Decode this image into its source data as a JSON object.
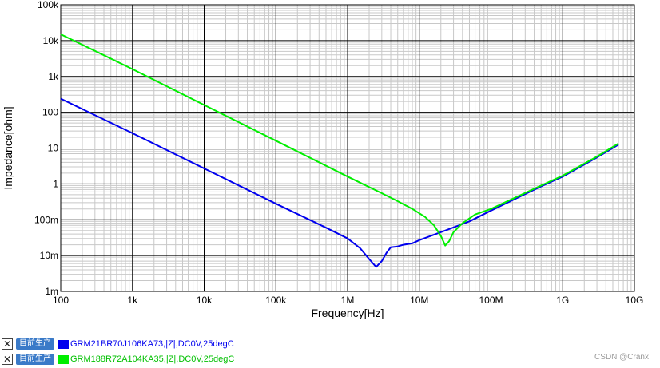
{
  "chart_data": {
    "type": "line",
    "xlabel": "Frequency[Hz]",
    "ylabel": "Impedance[ohm]",
    "x_scale": "log",
    "y_scale": "log",
    "xlim": [
      100,
      10000000000
    ],
    "ylim": [
      0.001,
      100000
    ],
    "grid": true,
    "legend_placement": "bottom-left",
    "x_ticks": [
      {
        "value": 100,
        "label": "100"
      },
      {
        "value": 1000,
        "label": "1k"
      },
      {
        "value": 10000,
        "label": "10k"
      },
      {
        "value": 100000,
        "label": "100k"
      },
      {
        "value": 1000000,
        "label": "1M"
      },
      {
        "value": 10000000,
        "label": "10M"
      },
      {
        "value": 100000000,
        "label": "100M"
      },
      {
        "value": 1000000000,
        "label": "1G"
      },
      {
        "value": 10000000000,
        "label": "10G"
      }
    ],
    "y_ticks": [
      {
        "value": 0.001,
        "label": "1m"
      },
      {
        "value": 0.01,
        "label": "10m"
      },
      {
        "value": 0.1,
        "label": "100m"
      },
      {
        "value": 1,
        "label": "1"
      },
      {
        "value": 10,
        "label": "10"
      },
      {
        "value": 100,
        "label": "100"
      },
      {
        "value": 1000,
        "label": "1k"
      },
      {
        "value": 10000,
        "label": "10k"
      },
      {
        "value": 100000,
        "label": "100k"
      }
    ],
    "series": [
      {
        "name": "GRM21BR70J106KA73,|Z|,DC0V,25degC",
        "color": "#0000ee",
        "points": [
          [
            100,
            240
          ],
          [
            1000,
            26
          ],
          [
            10000,
            2.7
          ],
          [
            100000,
            0.28
          ],
          [
            500000,
            0.06
          ],
          [
            1000000,
            0.03
          ],
          [
            1500000,
            0.016
          ],
          [
            2000000,
            0.008
          ],
          [
            2500000,
            0.0048
          ],
          [
            3000000,
            0.007
          ],
          [
            3500000,
            0.012
          ],
          [
            4000000,
            0.017
          ],
          [
            5000000,
            0.018
          ],
          [
            6000000,
            0.02
          ],
          [
            8000000,
            0.022
          ],
          [
            10000000,
            0.027
          ],
          [
            20000000,
            0.045
          ],
          [
            50000000,
            0.09
          ],
          [
            100000000,
            0.18
          ],
          [
            500000000,
            0.85
          ],
          [
            1000000000,
            1.6
          ],
          [
            3000000000,
            5.5
          ],
          [
            6000000000,
            12.5
          ]
        ]
      },
      {
        "name": "GRM188R72A104KA35,|Z|,DC0V,25degC",
        "color": "#00ee00",
        "points": [
          [
            100,
            15000
          ],
          [
            1000,
            1600
          ],
          [
            10000,
            160
          ],
          [
            100000,
            16
          ],
          [
            1000000,
            1.6
          ],
          [
            3000000,
            0.55
          ],
          [
            5000000,
            0.33
          ],
          [
            8000000,
            0.2
          ],
          [
            12000000,
            0.12
          ],
          [
            16000000,
            0.07
          ],
          [
            20000000,
            0.035
          ],
          [
            23000000,
            0.019
          ],
          [
            26000000,
            0.025
          ],
          [
            30000000,
            0.045
          ],
          [
            40000000,
            0.08
          ],
          [
            60000000,
            0.14
          ],
          [
            100000000,
            0.2
          ],
          [
            500000000,
            0.9
          ],
          [
            1000000000,
            1.7
          ],
          [
            3000000000,
            5.8
          ],
          [
            6000000000,
            13.5
          ]
        ]
      }
    ]
  },
  "legend": {
    "badge_label": "目前生产",
    "close_glyph": "✕"
  },
  "watermark": "CSDN @Cranx"
}
